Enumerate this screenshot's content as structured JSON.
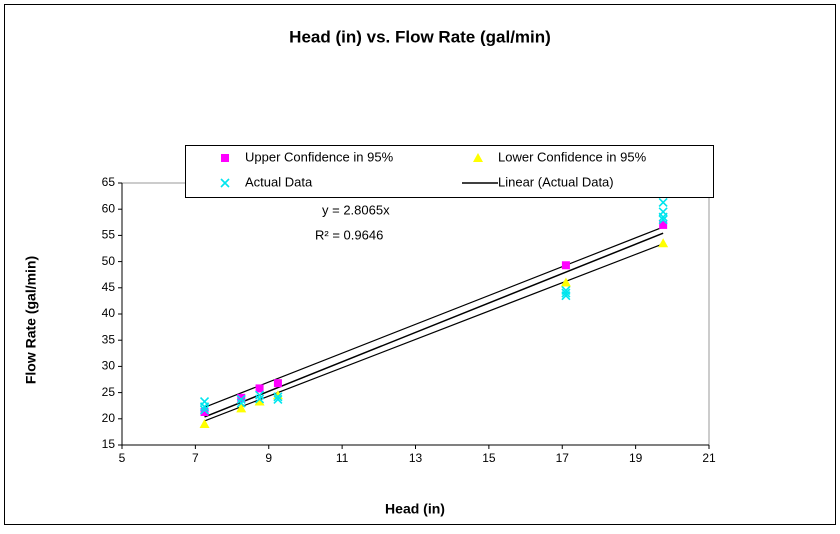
{
  "chart_data": {
    "type": "scatter",
    "title": "Head (in) vs. Flow Rate (gal/min)",
    "x_label": "Head (in)",
    "y_label": "Flow Rate (gal/min)",
    "xlim": [
      5,
      21
    ],
    "xticks": [
      5,
      7,
      9,
      11,
      13,
      15,
      17,
      19,
      21
    ],
    "ylim": [
      15,
      65
    ],
    "yticks": [
      15,
      20,
      25,
      30,
      35,
      40,
      45,
      50,
      55,
      60,
      65
    ],
    "grid": false,
    "legend": "top",
    "series": [
      {
        "name": "Upper Confidence in 95%",
        "color": "#FF00FF",
        "marker": "square",
        "x": [
          7.25,
          8.25,
          8.75,
          9.25,
          17.1,
          19.75
        ],
        "values": [
          21.3,
          24,
          25.8,
          26.8,
          49.3,
          57
        ]
      },
      {
        "name": "Lower Confidence in 95%",
        "color": "#FFFF00",
        "marker": "triangle",
        "x": [
          7.25,
          8.25,
          8.75,
          9.25,
          17.1,
          19.75
        ],
        "values": [
          19,
          22,
          23.3,
          24.5,
          46,
          53.5
        ]
      },
      {
        "name": "Actual Data",
        "color": "#00E5EE",
        "marker": "x",
        "x": [
          7.25,
          7.25,
          7.25,
          8.25,
          8.25,
          8.75,
          8.75,
          9.25,
          9.25,
          17.1,
          17.1,
          17.1,
          19.75,
          19.75,
          19.75,
          19.75
        ],
        "values": [
          23.3,
          22.3,
          21.7,
          23.7,
          23,
          24.5,
          23.8,
          24.2,
          23.7,
          44.5,
          43.5,
          44,
          61.3,
          59.5,
          58.5,
          58
        ]
      }
    ],
    "trendline": {
      "name": "Linear (Actual Data)",
      "slope": 2.8065,
      "x": [
        7.25,
        19.75
      ],
      "color": "#000000",
      "equation": "y = 2.8065x",
      "r2_label": "R² = 0.9646"
    },
    "bands": [
      {
        "x": [
          7.25,
          19.75
        ],
        "values": [
          22.2,
          56.6
        ]
      },
      {
        "x": [
          7.25,
          19.75
        ],
        "values": [
          19.6,
          53.4
        ]
      }
    ]
  }
}
